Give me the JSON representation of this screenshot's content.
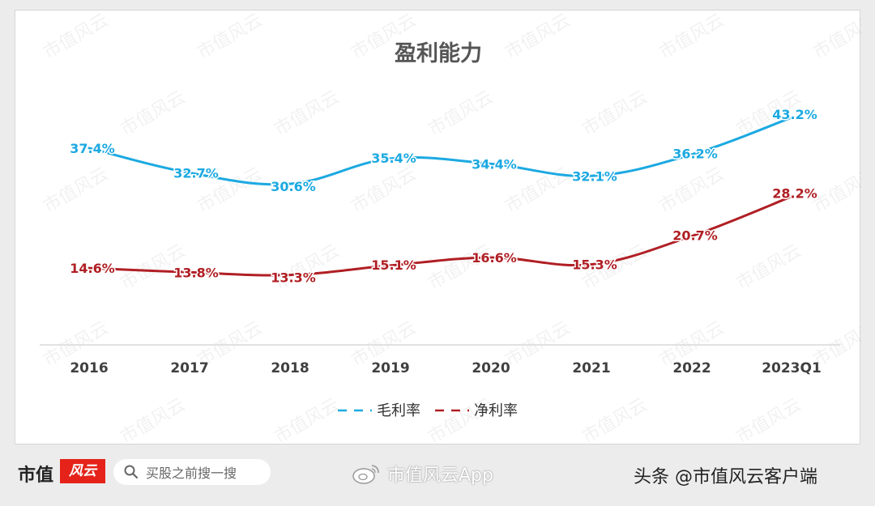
{
  "chart_data": {
    "type": "line",
    "title": "盈利能力",
    "categories": [
      "2016",
      "2017",
      "2018",
      "2019",
      "2020",
      "2021",
      "2022",
      "2023Q1"
    ],
    "series": [
      {
        "name": "毛利率",
        "values": [
          37.4,
          32.7,
          30.6,
          35.4,
          34.4,
          32.1,
          36.2,
          43.2
        ],
        "labels": [
          "37.4%",
          "32.7%",
          "30.6%",
          "35.4%",
          "34.4%",
          "32.1%",
          "36.2%",
          "43.2%"
        ],
        "color": "#1ca9e1"
      },
      {
        "name": "净利率",
        "values": [
          14.6,
          13.8,
          13.3,
          15.1,
          16.6,
          15.3,
          20.7,
          28.2
        ],
        "labels": [
          "14.6%",
          "13.8%",
          "13.3%",
          "15.1%",
          "16.6%",
          "15.3%",
          "20.7%",
          "28.2%"
        ],
        "color": "#b01f24"
      }
    ],
    "ylim": [
      0,
      50
    ],
    "grid": false,
    "legend": "bottom",
    "xlabel": "",
    "ylabel": ""
  },
  "watermark": {
    "text": "市值风云"
  },
  "footer": {
    "brand": "市值",
    "brand_mark": "风云",
    "search_placeholder": "买股之前搜一搜",
    "weibo": "市值风云App",
    "toutiao": "头条 @市值风云客户端",
    "accent": "#e5231a"
  }
}
